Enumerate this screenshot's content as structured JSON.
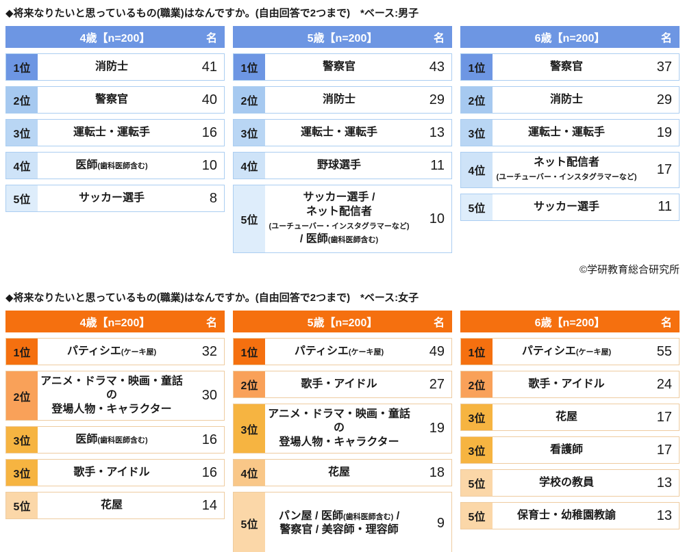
{
  "copyright": "©学研教育総合研究所",
  "chart_data": [
    {
      "type": "table",
      "title": "◆将来なりたいと思っているもの(職業)はなんですか。(自由回答で2つまで)　*ベース:男子",
      "theme": {
        "header_bg": "#6D96E3",
        "header_text": "#FFFFFF",
        "row_border": "#AACDF1",
        "rank_colors": {
          "1": "#6D96E3",
          "2": "#A6C9F0",
          "3": "#B9D6F4",
          "4": "#CEE3F8",
          "5": "#DEEDFB"
        }
      },
      "tables": [
        {
          "header": "4歳【n=200】",
          "unit": "名",
          "rows": [
            {
              "rank": "1位",
              "level": "1",
              "lines": [
                [
                  {
                    "t": "消防士"
                  }
                ]
              ],
              "count": "41"
            },
            {
              "rank": "2位",
              "level": "2",
              "lines": [
                [
                  {
                    "t": "警察官"
                  }
                ]
              ],
              "count": "40"
            },
            {
              "rank": "3位",
              "level": "3",
              "lines": [
                [
                  {
                    "t": "運転士・運転手"
                  }
                ]
              ],
              "count": "16"
            },
            {
              "rank": "4位",
              "level": "4",
              "lines": [
                [
                  {
                    "t": "医師"
                  },
                  {
                    "t": "(歯科医師含む)",
                    "s": 1
                  }
                ]
              ],
              "count": "10"
            },
            {
              "rank": "5位",
              "level": "5",
              "lines": [
                [
                  {
                    "t": "サッカー選手"
                  }
                ]
              ],
              "count": "8"
            }
          ]
        },
        {
          "header": "5歳【n=200】",
          "unit": "名",
          "rows": [
            {
              "rank": "1位",
              "level": "1",
              "lines": [
                [
                  {
                    "t": "警察官"
                  }
                ]
              ],
              "count": "43"
            },
            {
              "rank": "2位",
              "level": "2",
              "lines": [
                [
                  {
                    "t": "消防士"
                  }
                ]
              ],
              "count": "29"
            },
            {
              "rank": "3位",
              "level": "3",
              "lines": [
                [
                  {
                    "t": "運転士・運転手"
                  }
                ]
              ],
              "count": "13"
            },
            {
              "rank": "4位",
              "level": "4",
              "lines": [
                [
                  {
                    "t": "野球選手"
                  }
                ]
              ],
              "count": "11"
            },
            {
              "rank": "5位",
              "level": "5",
              "h": 100,
              "lines": [
                [
                  {
                    "t": "サッカー選手 /"
                  }
                ],
                [
                  {
                    "t": "ネット配信者"
                  }
                ],
                [
                  {
                    "t": "(ユーチューバー・インスタグラマーなど)",
                    "s": 1
                  }
                ],
                [
                  {
                    "t": "/ 医師"
                  },
                  {
                    "t": "(歯科医師含む)",
                    "s": 1
                  }
                ]
              ],
              "count": "10"
            }
          ]
        },
        {
          "header": "6歳【n=200】",
          "unit": "名",
          "rows": [
            {
              "rank": "1位",
              "level": "1",
              "lines": [
                [
                  {
                    "t": "警察官"
                  }
                ]
              ],
              "count": "37"
            },
            {
              "rank": "2位",
              "level": "2",
              "lines": [
                [
                  {
                    "t": "消防士"
                  }
                ]
              ],
              "count": "29"
            },
            {
              "rank": "3位",
              "level": "3",
              "lines": [
                [
                  {
                    "t": "運転士・運転手"
                  }
                ]
              ],
              "count": "19"
            },
            {
              "rank": "4位",
              "level": "4",
              "lines": [
                [
                  {
                    "t": "ネット配信者"
                  }
                ],
                [
                  {
                    "t": "(ユーチューバー・インスタグラマーなど)",
                    "s": 1
                  }
                ]
              ],
              "count": "17"
            },
            {
              "rank": "5位",
              "level": "5",
              "lines": [
                [
                  {
                    "t": "サッカー選手"
                  }
                ]
              ],
              "count": "11"
            }
          ]
        }
      ]
    },
    {
      "type": "table",
      "title": "◆将来なりたいと思っているもの(職業)はなんですか。(自由回答で2つまで)　*ベース:女子",
      "theme": {
        "header_bg": "#F5700F",
        "header_text": "#FFFFFF",
        "row_border": "#EECB9F",
        "rank_colors": {
          "1": "#F5700F",
          "2": "#F9A159",
          "3": "#F6B441",
          "4": "#F9C788",
          "5": "#FBD7A8"
        }
      },
      "tables": [
        {
          "header": "4歳【n=200】",
          "unit": "名",
          "rows": [
            {
              "rank": "1位",
              "level": "1",
              "lines": [
                [
                  {
                    "t": "パティシエ"
                  },
                  {
                    "t": "(ケーキ屋)",
                    "s": 1
                  }
                ]
              ],
              "count": "32"
            },
            {
              "rank": "2位",
              "level": "2",
              "lines": [
                [
                  {
                    "t": "アニメ・ドラマ・映画・童話の"
                  }
                ],
                [
                  {
                    "t": "登場人物・キャラクター"
                  }
                ]
              ],
              "count": "30"
            },
            {
              "rank": "3位",
              "level": "3",
              "lines": [
                [
                  {
                    "t": "医師"
                  },
                  {
                    "t": "(歯科医師含む)",
                    "s": 1
                  }
                ]
              ],
              "count": "16"
            },
            {
              "rank": "3位",
              "level": "3",
              "lines": [
                [
                  {
                    "t": "歌手・アイドル"
                  }
                ]
              ],
              "count": "16"
            },
            {
              "rank": "5位",
              "level": "5",
              "lines": [
                [
                  {
                    "t": "花屋"
                  }
                ]
              ],
              "count": "14"
            }
          ]
        },
        {
          "header": "5歳【n=200】",
          "unit": "名",
          "rows": [
            {
              "rank": "1位",
              "level": "1",
              "lines": [
                [
                  {
                    "t": "パティシエ"
                  },
                  {
                    "t": "(ケーキ屋)",
                    "s": 1
                  }
                ]
              ],
              "count": "49"
            },
            {
              "rank": "2位",
              "level": "2",
              "lines": [
                [
                  {
                    "t": "歌手・アイドル"
                  }
                ]
              ],
              "count": "27"
            },
            {
              "rank": "3位",
              "level": "3",
              "lines": [
                [
                  {
                    "t": "アニメ・ドラマ・映画・童話の"
                  }
                ],
                [
                  {
                    "t": "登場人物・キャラクター"
                  }
                ]
              ],
              "count": "19"
            },
            {
              "rank": "4位",
              "level": "4",
              "lines": [
                [
                  {
                    "t": "花屋"
                  }
                ]
              ],
              "count": "18"
            },
            {
              "rank": "5位",
              "level": "5",
              "h": 92,
              "lines": [
                [
                  {
                    "t": "パン屋 / 医師"
                  },
                  {
                    "t": "(歯科医師含む)",
                    "s": 1
                  },
                  {
                    "t": " /"
                  }
                ],
                [
                  {
                    "t": "警察官 / 美容師・理容師"
                  }
                ]
              ],
              "count": "9"
            }
          ]
        },
        {
          "header": "6歳【n=200】",
          "unit": "名",
          "rows": [
            {
              "rank": "1位",
              "level": "1",
              "lines": [
                [
                  {
                    "t": "パティシエ"
                  },
                  {
                    "t": "(ケーキ屋)",
                    "s": 1
                  }
                ]
              ],
              "count": "55"
            },
            {
              "rank": "2位",
              "level": "2",
              "lines": [
                [
                  {
                    "t": "歌手・アイドル"
                  }
                ]
              ],
              "count": "24"
            },
            {
              "rank": "3位",
              "level": "3",
              "lines": [
                [
                  {
                    "t": "花屋"
                  }
                ]
              ],
              "count": "17"
            },
            {
              "rank": "3位",
              "level": "3",
              "lines": [
                [
                  {
                    "t": "看護師"
                  }
                ]
              ],
              "count": "17"
            },
            {
              "rank": "5位",
              "level": "5",
              "lines": [
                [
                  {
                    "t": "学校の教員"
                  }
                ]
              ],
              "count": "13"
            },
            {
              "rank": "5位",
              "level": "5",
              "lines": [
                [
                  {
                    "t": "保育士・幼稚園教諭"
                  }
                ]
              ],
              "count": "13"
            }
          ]
        }
      ]
    }
  ]
}
